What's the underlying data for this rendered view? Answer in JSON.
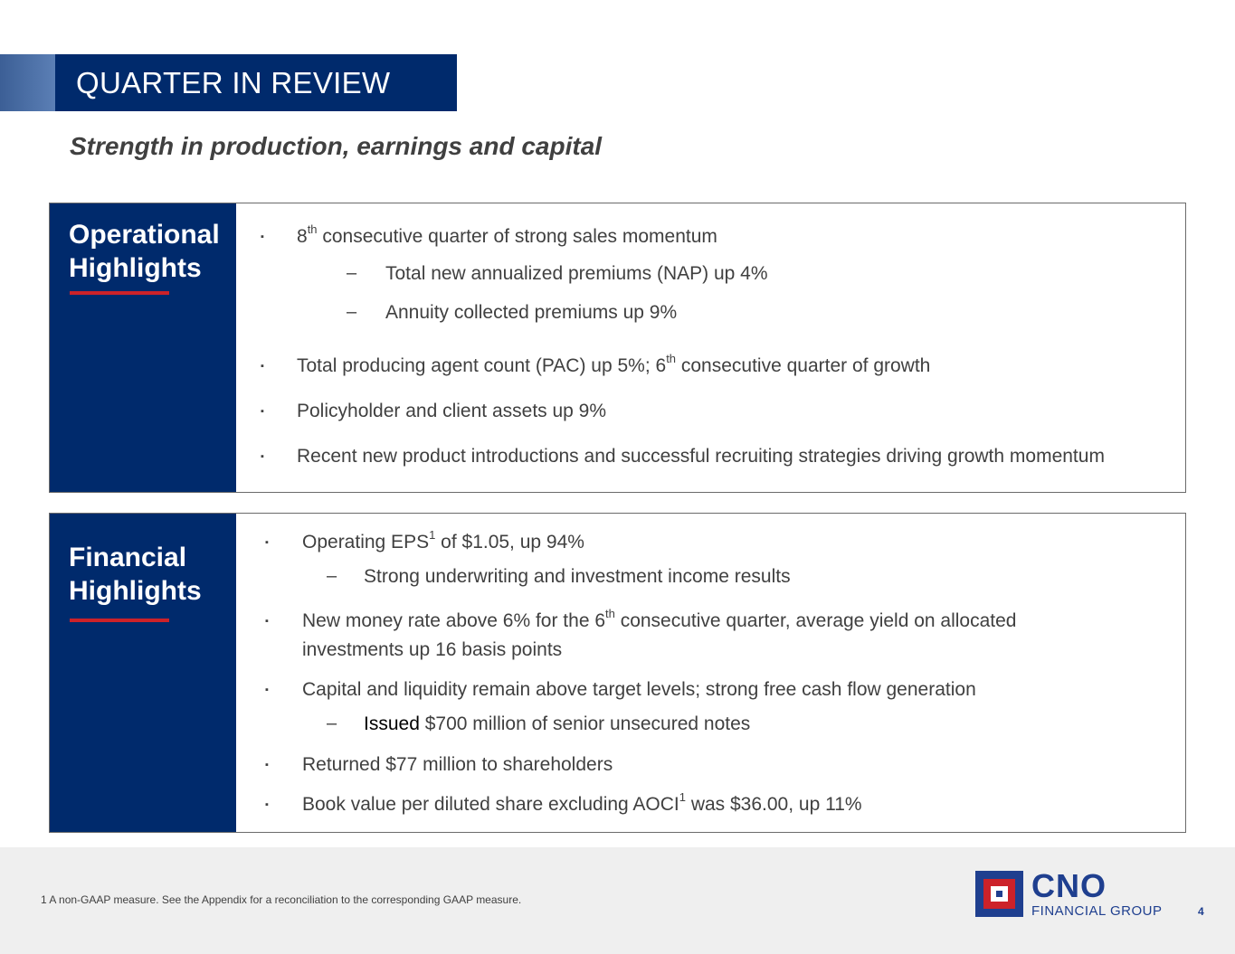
{
  "header": {
    "title": "QUARTER IN REVIEW",
    "subtitle": "Strength in production, earnings and capital"
  },
  "operational": {
    "heading_line1": "Operational",
    "heading_line2": "Highlights",
    "items": [
      {
        "pre": "8",
        "sup": "th",
        "post": " consecutive quarter of strong sales momentum"
      },
      {
        "text": "Total new annualized premiums (NAP) up 4%"
      },
      {
        "text": "Annuity collected premiums up 9%"
      },
      {
        "pre": "Total producing agent count (PAC) up 5%; 6",
        "sup": "th",
        "post": " consecutive quarter of growth"
      },
      {
        "text": "Policyholder and client assets up 9%"
      },
      {
        "text": "Recent new product introductions and successful recruiting strategies driving growth momentum"
      }
    ]
  },
  "financial": {
    "heading_line1": "Financial",
    "heading_line2": "Highlights",
    "items": [
      {
        "pre": "Operating EPS",
        "sup": "1",
        "post": " of $1.05, up 94%"
      },
      {
        "text": "Strong underwriting and investment income results"
      },
      {
        "pre": "New money rate above 6% for the 6",
        "sup": "th",
        "post": " consecutive quarter, average yield on allocated",
        "line2": "investments up 16 basis points"
      },
      {
        "text": "Capital and liquidity remain above target levels; strong free cash flow generation"
      },
      {
        "pre": "Issued",
        "post": " $700 million of senior unsecured notes"
      },
      {
        "text": "Returned $77 million to shareholders"
      },
      {
        "pre": "Book value per diluted share excluding AOCI",
        "sup": "1",
        "post": " was $36.00, up 11%"
      }
    ]
  },
  "bullet_glyph": "▪",
  "dash_glyph": "–",
  "footer": {
    "footnote": "1  A non-GAAP measure. See the Appendix for a reconciliation to the corresponding GAAP measure.",
    "logo_name": "CNO",
    "logo_tagline": "FINANCIAL GROUP",
    "page_number": "4"
  },
  "colors": {
    "navy": "#002a6c",
    "accent_red": "#cc2229",
    "logo_blue": "#1f3f8f",
    "text": "#404040"
  }
}
